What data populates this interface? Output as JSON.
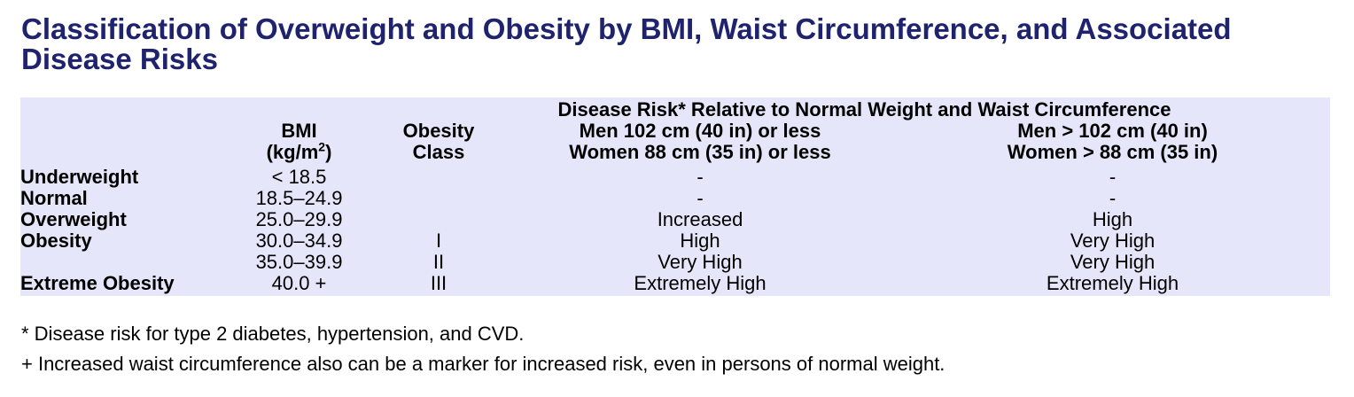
{
  "title": "Classification of Overweight and Obesity by BMI, Waist Circumference, and Associated Disease Risks",
  "table": {
    "super_header": "Disease Risk* Relative to Normal Weight and Waist Circumference",
    "headers": {
      "bmi_line1": "BMI",
      "bmi_line2": "(kg/m",
      "bmi_sup": "2",
      "bmi_close": ")",
      "class_line1": "Obesity",
      "class_line2": "Class",
      "low_men": "Men 102 cm (40 in) or less",
      "low_women": "Women 88 cm (35 in) or less",
      "high_men": "Men > 102 cm (40 in)",
      "high_women": "Women > 88 cm (35 in)"
    },
    "rows": [
      {
        "label": "Underweight",
        "bmi": "< 18.5",
        "class": "",
        "low": "-",
        "high": "-"
      },
      {
        "label": "Normal",
        "bmi": "18.5–24.9",
        "class": "",
        "low": "-",
        "high": "-"
      },
      {
        "label": "Overweight",
        "bmi": "25.0–29.9",
        "class": "",
        "low": "Increased",
        "high": "High"
      },
      {
        "label": "Obesity",
        "bmi": "30.0–34.9",
        "class": "I",
        "low": "High",
        "high": "Very High"
      },
      {
        "label": "",
        "bmi": "35.0–39.9",
        "class": "II",
        "low": "Very High",
        "high": "Very High"
      },
      {
        "label": "Extreme Obesity",
        "bmi": "40.0 +",
        "class": "III",
        "low": "Extremely High",
        "high": "Extremely High"
      }
    ]
  },
  "footnotes": [
    "* Disease risk for type 2 diabetes, hypertension, and CVD.",
    "+ Increased waist circumference also can be a marker for increased risk, even in persons of normal weight."
  ],
  "colors": {
    "title": "#1f236e",
    "table_background": "#e6e6fa"
  }
}
